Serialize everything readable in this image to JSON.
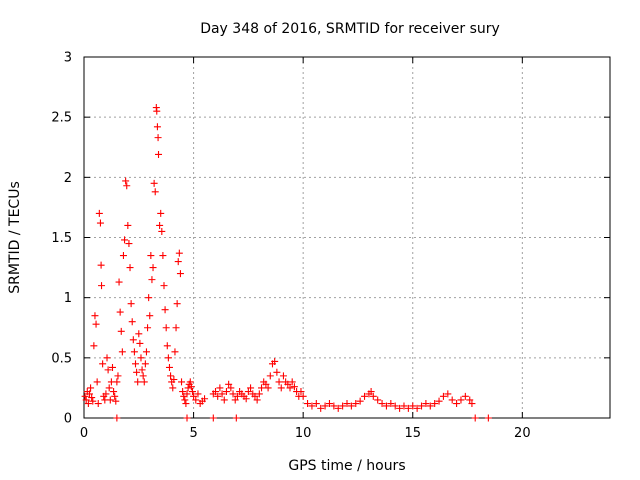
{
  "chart_data": {
    "type": "scatter",
    "title": "Day 348 of 2016, SRMTID for receiver sury",
    "xlabel": "GPS time / hours",
    "ylabel": "SRMTID / TECUs",
    "xlim": [
      0,
      24
    ],
    "ylim": [
      0,
      3
    ],
    "xticks": [
      0,
      5,
      10,
      15,
      20
    ],
    "xtick_labels": [
      "0",
      "5",
      "10",
      "15",
      "20"
    ],
    "yticks": [
      0,
      0.5,
      1,
      1.5,
      2,
      2.5,
      3
    ],
    "ytick_labels": [
      "0",
      "0.5",
      "1",
      "1.5",
      "2",
      "2.5",
      "3"
    ],
    "grid": true,
    "marker": "+",
    "color": "#ff0000",
    "series": [
      {
        "name": "SRMTID",
        "points": [
          [
            0.05,
            0.18
          ],
          [
            0.1,
            0.15
          ],
          [
            0.15,
            0.22
          ],
          [
            0.2,
            0.12
          ],
          [
            0.25,
            0.2
          ],
          [
            0.3,
            0.25
          ],
          [
            0.35,
            0.17
          ],
          [
            0.4,
            0.14
          ],
          [
            0.45,
            0.6
          ],
          [
            0.5,
            0.85
          ],
          [
            0.55,
            0.78
          ],
          [
            0.6,
            0.3
          ],
          [
            0.65,
            0.12
          ],
          [
            0.7,
            1.7
          ],
          [
            0.75,
            1.62
          ],
          [
            0.78,
            1.27
          ],
          [
            0.8,
            1.1
          ],
          [
            0.85,
            0.45
          ],
          [
            0.9,
            0.18
          ],
          [
            0.95,
            0.15
          ],
          [
            1.0,
            0.2
          ],
          [
            1.05,
            0.5
          ],
          [
            1.1,
            0.4
          ],
          [
            1.15,
            0.25
          ],
          [
            1.2,
            0.15
          ],
          [
            1.25,
            0.3
          ],
          [
            1.3,
            0.42
          ],
          [
            1.35,
            0.22
          ],
          [
            1.4,
            0.18
          ],
          [
            1.45,
            0.14
          ],
          [
            1.5,
            0.3
          ],
          [
            1.55,
            0.35
          ],
          [
            1.6,
            1.13
          ],
          [
            1.65,
            0.88
          ],
          [
            1.7,
            0.72
          ],
          [
            1.75,
            0.55
          ],
          [
            1.8,
            1.35
          ],
          [
            1.85,
            1.48
          ],
          [
            1.9,
            1.97
          ],
          [
            1.95,
            1.93
          ],
          [
            2.0,
            1.6
          ],
          [
            2.05,
            1.45
          ],
          [
            2.1,
            1.25
          ],
          [
            2.15,
            0.95
          ],
          [
            2.2,
            0.8
          ],
          [
            2.25,
            0.65
          ],
          [
            2.3,
            0.55
          ],
          [
            2.35,
            0.45
          ],
          [
            2.4,
            0.38
          ],
          [
            2.45,
            0.3
          ],
          [
            2.5,
            0.7
          ],
          [
            2.55,
            0.62
          ],
          [
            2.6,
            0.5
          ],
          [
            2.65,
            0.4
          ],
          [
            2.7,
            0.35
          ],
          [
            2.75,
            0.3
          ],
          [
            2.8,
            0.45
          ],
          [
            2.85,
            0.55
          ],
          [
            2.9,
            0.75
          ],
          [
            2.95,
            1.0
          ],
          [
            3.0,
            0.85
          ],
          [
            3.05,
            1.35
          ],
          [
            3.1,
            1.15
          ],
          [
            3.15,
            1.25
          ],
          [
            3.2,
            1.95
          ],
          [
            3.25,
            1.88
          ],
          [
            3.3,
            2.58
          ],
          [
            3.32,
            2.55
          ],
          [
            3.35,
            2.42
          ],
          [
            3.38,
            2.33
          ],
          [
            3.4,
            2.19
          ],
          [
            3.45,
            1.6
          ],
          [
            3.5,
            1.7
          ],
          [
            3.55,
            1.55
          ],
          [
            3.6,
            1.35
          ],
          [
            3.65,
            1.1
          ],
          [
            3.7,
            0.9
          ],
          [
            3.75,
            0.75
          ],
          [
            3.8,
            0.6
          ],
          [
            3.85,
            0.5
          ],
          [
            3.9,
            0.42
          ],
          [
            3.95,
            0.35
          ],
          [
            4.0,
            0.3
          ],
          [
            4.05,
            0.25
          ],
          [
            4.1,
            0.32
          ],
          [
            4.15,
            0.55
          ],
          [
            4.2,
            0.75
          ],
          [
            4.25,
            0.95
          ],
          [
            4.3,
            1.3
          ],
          [
            4.35,
            1.37
          ],
          [
            4.4,
            1.2
          ],
          [
            4.45,
            0.3
          ],
          [
            4.5,
            0.22
          ],
          [
            4.55,
            0.18
          ],
          [
            4.6,
            0.15
          ],
          [
            4.65,
            0.12
          ],
          [
            4.7,
            0.2
          ],
          [
            4.75,
            0.25
          ],
          [
            4.8,
            0.28
          ],
          [
            4.85,
            0.3
          ],
          [
            4.9,
            0.26
          ],
          [
            4.95,
            0.22
          ],
          [
            5.0,
            0.18
          ],
          [
            5.1,
            0.15
          ],
          [
            5.2,
            0.2
          ],
          [
            5.3,
            0.12
          ],
          [
            5.4,
            0.14
          ],
          [
            5.5,
            0.16
          ],
          [
            5.9,
            0.2
          ],
          [
            6.0,
            0.22
          ],
          [
            6.1,
            0.18
          ],
          [
            6.2,
            0.25
          ],
          [
            6.3,
            0.2
          ],
          [
            6.4,
            0.15
          ],
          [
            6.5,
            0.22
          ],
          [
            6.6,
            0.28
          ],
          [
            6.7,
            0.25
          ],
          [
            6.8,
            0.2
          ],
          [
            6.9,
            0.15
          ],
          [
            7.0,
            0.18
          ],
          [
            7.1,
            0.22
          ],
          [
            7.2,
            0.2
          ],
          [
            7.3,
            0.18
          ],
          [
            7.4,
            0.16
          ],
          [
            7.5,
            0.22
          ],
          [
            7.6,
            0.25
          ],
          [
            7.7,
            0.2
          ],
          [
            7.8,
            0.18
          ],
          [
            7.9,
            0.15
          ],
          [
            8.0,
            0.2
          ],
          [
            8.1,
            0.25
          ],
          [
            8.2,
            0.3
          ],
          [
            8.3,
            0.28
          ],
          [
            8.4,
            0.25
          ],
          [
            8.5,
            0.35
          ],
          [
            8.6,
            0.45
          ],
          [
            8.7,
            0.47
          ],
          [
            8.8,
            0.38
          ],
          [
            8.9,
            0.3
          ],
          [
            9.0,
            0.25
          ],
          [
            9.1,
            0.35
          ],
          [
            9.2,
            0.3
          ],
          [
            9.3,
            0.28
          ],
          [
            9.4,
            0.25
          ],
          [
            9.5,
            0.3
          ],
          [
            9.6,
            0.26
          ],
          [
            9.7,
            0.22
          ],
          [
            9.8,
            0.18
          ],
          [
            9.9,
            0.22
          ],
          [
            10.0,
            0.18
          ],
          [
            10.2,
            0.12
          ],
          [
            10.4,
            0.1
          ],
          [
            10.6,
            0.12
          ],
          [
            10.8,
            0.08
          ],
          [
            11.0,
            0.1
          ],
          [
            11.2,
            0.12
          ],
          [
            11.4,
            0.1
          ],
          [
            11.6,
            0.08
          ],
          [
            11.8,
            0.1
          ],
          [
            12.0,
            0.12
          ],
          [
            12.2,
            0.1
          ],
          [
            12.4,
            0.12
          ],
          [
            12.6,
            0.14
          ],
          [
            12.8,
            0.18
          ],
          [
            13.0,
            0.2
          ],
          [
            13.1,
            0.22
          ],
          [
            13.2,
            0.18
          ],
          [
            13.4,
            0.15
          ],
          [
            13.6,
            0.12
          ],
          [
            13.8,
            0.1
          ],
          [
            14.0,
            0.12
          ],
          [
            14.2,
            0.1
          ],
          [
            14.4,
            0.08
          ],
          [
            14.6,
            0.1
          ],
          [
            14.8,
            0.08
          ],
          [
            15.0,
            0.1
          ],
          [
            15.2,
            0.08
          ],
          [
            15.4,
            0.1
          ],
          [
            15.6,
            0.12
          ],
          [
            15.8,
            0.1
          ],
          [
            16.0,
            0.12
          ],
          [
            16.2,
            0.14
          ],
          [
            16.4,
            0.18
          ],
          [
            16.6,
            0.2
          ],
          [
            16.8,
            0.15
          ],
          [
            17.0,
            0.12
          ],
          [
            17.2,
            0.15
          ],
          [
            17.4,
            0.18
          ],
          [
            17.6,
            0.15
          ],
          [
            17.7,
            0.12
          ],
          [
            1.5,
            0.0
          ],
          [
            4.7,
            0.0
          ],
          [
            5.9,
            0.0
          ],
          [
            6.95,
            0.0
          ],
          [
            17.85,
            0.0
          ],
          [
            18.45,
            0.0
          ]
        ]
      }
    ]
  }
}
